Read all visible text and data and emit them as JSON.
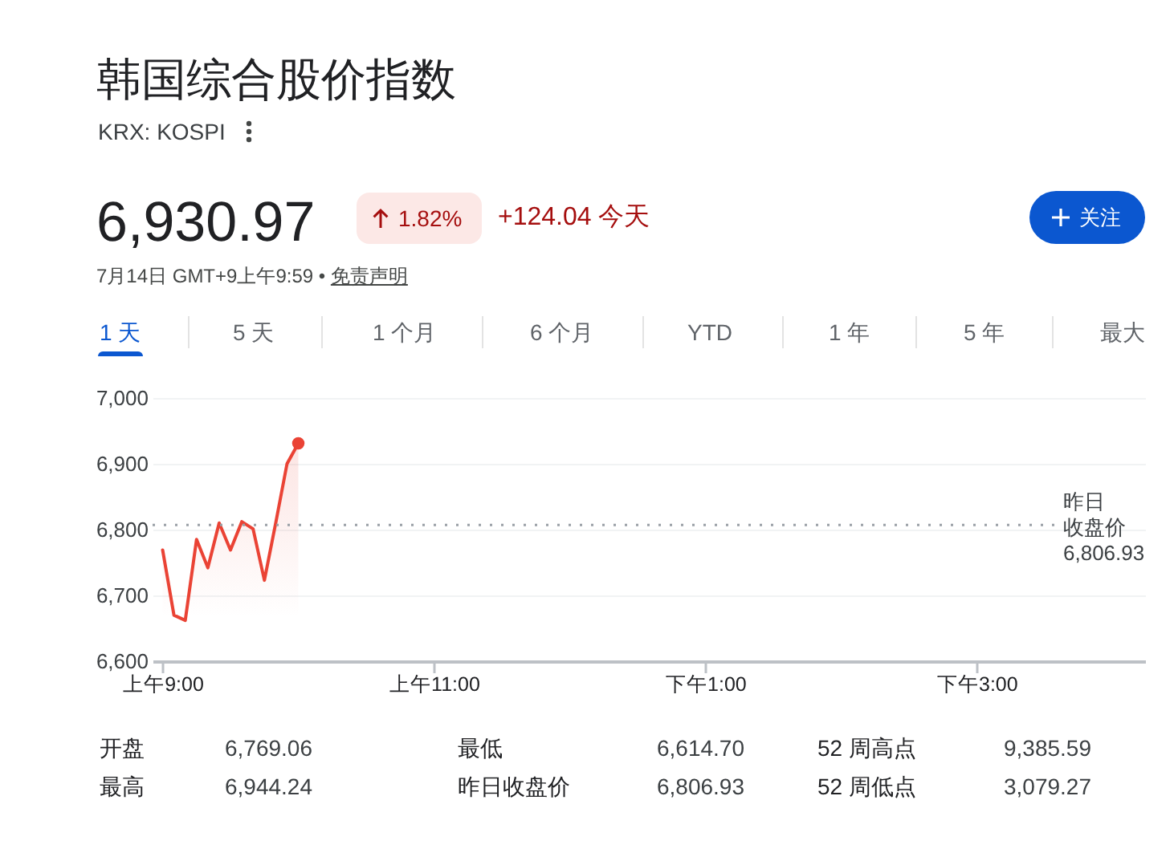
{
  "chart_data": {
    "type": "area",
    "title": "韩国综合股价指数",
    "subtitle": "KRX: KOSPI",
    "categories": [
      "上午9:00",
      null,
      null,
      null,
      null,
      null,
      null,
      null,
      null,
      null,
      null,
      null,
      null,
      null,
      null,
      null,
      null,
      null,
      null,
      null,
      null,
      null,
      null,
      null,
      "上午11:00",
      null,
      null,
      null,
      null,
      null,
      null,
      null,
      null,
      null,
      null,
      null,
      null,
      null,
      null,
      null,
      null,
      null,
      null,
      null,
      null,
      null,
      null,
      null,
      "下午1:00",
      null,
      null,
      null,
      null,
      null,
      null,
      null,
      null,
      null,
      null,
      null,
      null,
      null,
      null,
      null,
      null,
      null,
      null,
      null,
      null,
      null,
      null,
      null,
      "下午3:00",
      null,
      null,
      null,
      null,
      null,
      null,
      null,
      null,
      null,
      null,
      null,
      null,
      null,
      null
    ],
    "series": [
      {
        "color": "#ea4335",
        "values": [
          6769,
          6670,
          6662,
          6785,
          6742,
          6810,
          6769,
          6812,
          6801,
          6723,
          6810,
          6900,
          6931,
          null,
          null,
          null,
          null,
          null,
          null,
          null,
          null,
          null,
          null,
          null,
          null,
          null,
          null,
          null,
          null,
          null,
          null,
          null,
          null,
          null,
          null,
          null,
          null,
          null,
          null,
          null,
          null,
          null,
          null,
          null,
          null,
          null,
          null,
          null,
          null,
          null,
          null,
          null,
          null,
          null,
          null,
          null,
          null,
          null,
          null,
          null,
          null,
          null,
          null,
          null,
          null,
          null,
          null,
          null,
          null,
          null,
          null,
          null,
          null,
          null,
          null,
          null,
          null,
          null,
          null,
          null,
          null,
          null,
          null,
          null,
          null,
          null,
          null
        ]
      },
      {
        "type": "scatter",
        "color": "#ea4335",
        "marker": "circle",
        "values": [
          null,
          null,
          null,
          null,
          null,
          null,
          null,
          null,
          null,
          null,
          null,
          null,
          6931,
          null,
          null,
          null,
          null,
          null,
          null,
          null,
          null,
          null,
          null,
          null,
          null,
          null,
          null,
          null,
          null,
          null,
          null,
          null,
          null,
          null,
          null,
          null,
          null,
          null,
          null,
          null,
          null,
          null,
          null,
          null,
          null,
          null,
          null,
          null,
          null,
          null,
          null,
          null,
          null,
          null,
          null,
          null,
          null,
          null,
          null,
          null,
          null,
          null,
          null,
          null,
          null,
          null,
          null,
          null,
          null,
          null,
          null,
          null,
          null,
          null,
          null,
          null,
          null,
          null,
          null,
          null,
          null,
          null,
          null,
          null,
          null,
          null,
          null
        ]
      }
    ],
    "ylim": [
      6600,
      7000
    ],
    "yticks": [
      {
        "value": 6600,
        "label": "6,600"
      },
      {
        "value": 6700,
        "label": "6,700"
      },
      {
        "value": 6800,
        "label": "6,800"
      },
      {
        "value": 6900,
        "label": "6,900"
      },
      {
        "value": 7000,
        "label": "7,000"
      }
    ],
    "grid": "y",
    "ref_lines": [
      {
        "axis": "y",
        "value": 6806.93,
        "label": "昨日收盘价 6,806.93",
        "color": "#9aa0a6",
        "line_style": "dotted"
      }
    ],
    "annotations": [
      "6,930.97",
      "1.82%",
      "+124.04 今天",
      "关注",
      "7月14日 GMT+9上午9:59 •",
      "免责声明",
      "1 天",
      "5 天",
      "1 个月",
      "6 个月",
      "YTD",
      "1 年",
      "5 年",
      "最大",
      "开盘",
      "6,769.06",
      "最低",
      "6,614.70",
      "52 周高点",
      "9,385.59",
      "最高",
      "6,944.24",
      "昨日收盘价",
      "6,806.93",
      "52 周低点",
      "3,079.27"
    ]
  }
}
